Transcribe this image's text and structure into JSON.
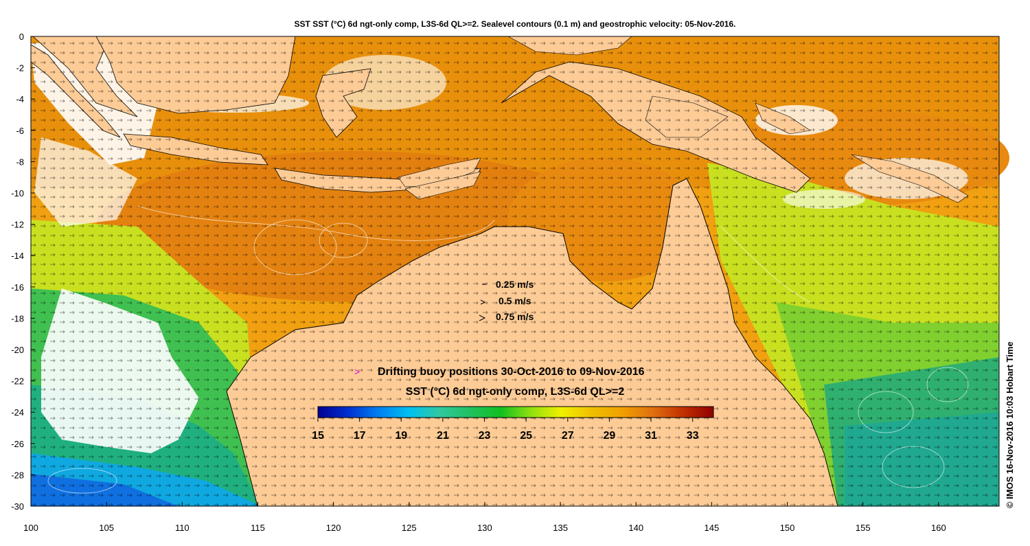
{
  "title": "SST SST (°C) 6d ngt-only comp, L3S-6d QL>=2. Sealevel contours (0.1 m) and geostrophic velocity: 05-Nov-2016.",
  "credit": "© IMOS 16-Nov-2016 10:03 Hobart Time",
  "x_ticks": [
    "100",
    "105",
    "110",
    "115",
    "120",
    "125",
    "130",
    "135",
    "140",
    "145",
    "150",
    "155",
    "160"
  ],
  "y_ticks": [
    "0",
    "-2",
    "-4",
    "-6",
    "-8",
    "-10",
    "-12",
    "-14",
    "-16",
    "-18",
    "-20",
    "-22",
    "-24",
    "-26",
    "-28",
    "-30"
  ],
  "extent": {
    "lon_min": 100,
    "lon_max": 164,
    "lat_min": -30,
    "lat_max": 0
  },
  "velocity_legend": [
    "0.25 m/s",
    "0.5 m/s",
    "0.75 m/s"
  ],
  "buoy_legend": {
    "marker": ">",
    "label": "Drifting buoy positions 30-Oct-2016 to 09-Nov-2016",
    "color": "#e000e0"
  },
  "colorbar": {
    "title": "SST (°C) 6d ngt-only comp, L3S-6d QL>=2",
    "min": 15,
    "max": 34,
    "ticks": [
      "15",
      "17",
      "19",
      "21",
      "23",
      "25",
      "27",
      "29",
      "31",
      "33"
    ],
    "colors": [
      "#000090",
      "#0030d0",
      "#0080f0",
      "#00c0f0",
      "#30c8a0",
      "#20c060",
      "#10c020",
      "#90e010",
      "#f0f000",
      "#f0c000",
      "#f0a000",
      "#e07010",
      "#c03000",
      "#900000"
    ]
  },
  "colors": {
    "land": "#fccb96",
    "ocean_warm": "#e88a10",
    "ocean_mid": "#c8e020",
    "ocean_cool": "#20b070",
    "ocean_cold": "#10a8e0"
  }
}
